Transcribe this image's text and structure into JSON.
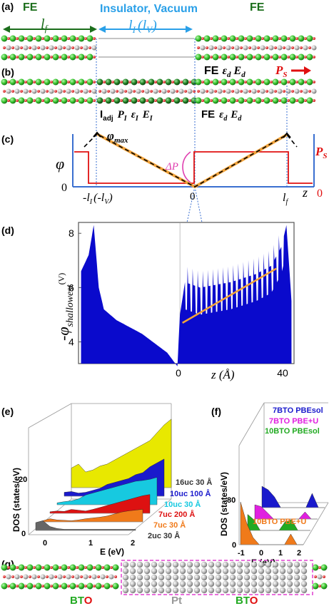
{
  "panels": {
    "a": {
      "letter": "(a)",
      "fe_left": "FE",
      "fe_right": "FE",
      "insulator": "Insulator, Vacuum",
      "lf": "l",
      "lf_sub": "f",
      "li": "l",
      "li_sub": "I",
      "li_paren": "(l",
      "li_paren_sub": "V",
      "li_close": ")"
    },
    "b": {
      "letter": "(b)",
      "right_label": "FE",
      "eps_d": "ε",
      "eps_d_sub": "d",
      "E_d": "E",
      "E_d_sub": "d",
      "Ps": "P",
      "Ps_sub": "S",
      "iadj": "I",
      "iadj_sub": "adj",
      "PI": "P",
      "PI_sub": "I",
      "epsI": "ε",
      "epsI_sub": "I",
      "EI": "E",
      "EI_sub": "I",
      "fe2": "FE",
      "eps2": "ε",
      "eps2_sub": "d",
      "E2": "E",
      "E2_sub": "d"
    },
    "c": {
      "letter": "(c)",
      "phi": "φ",
      "phimax": "φ",
      "phimax_sub": "max",
      "deltaP": "ΔP",
      "Ps": "P",
      "Ps_sub": "S",
      "zero_left": "0",
      "zero_mid": "0",
      "zero_right": "0",
      "z": "z",
      "left_tick": "-l",
      "left_tick_sub": "I",
      "left_tick_paren": "(-l",
      "left_tick_paren_sub": "V",
      "left_tick_close": ")",
      "right_tick": "l",
      "right_tick_sub": "f"
    },
    "d": {
      "letter": "(d)",
      "ylabel_minus": "-φ",
      "ylabel_sub": "shallowest",
      "ylabel_unit": "(V)",
      "xlabel": "z (Å)"
    },
    "e": {
      "letter": "(e)",
      "ylabel": "DOS (states/eV)",
      "xlabel": "E (eV)",
      "yticks": [
        "0",
        "20"
      ],
      "xticks": [
        "0",
        "1",
        "2"
      ],
      "legend": [
        {
          "text": "16uc 30 Å",
          "color": "#333333"
        },
        {
          "text": "10uc 100 Å",
          "color": "#1a1acc"
        },
        {
          "text": "10uc 30 Å",
          "color": "#17c9e0"
        },
        {
          "text": "7uc 200 Å",
          "color": "#dd1111"
        },
        {
          "text": "7uc 30 Å",
          "color": "#f07a1a"
        },
        {
          "text": "2uc 30 Å",
          "color": "#333333"
        }
      ]
    },
    "f": {
      "letter": "(f)",
      "ylabel": "DOS (states/eV)",
      "xlabel": "E (eV)",
      "yticks": [
        "0",
        "80"
      ],
      "xticks": [
        "-1",
        "0",
        "1",
        "2"
      ],
      "legend": [
        {
          "text": "7BTO PBEsol",
          "color": "#1a1acc"
        },
        {
          "text": "7BTO PBE+U",
          "color": "#e020e0"
        },
        {
          "text": "10BTO PBEsol",
          "color": "#22aa22"
        },
        {
          "text": "10BTO PBE+U",
          "color": "#f07a1a"
        }
      ]
    },
    "g": {
      "letter": "(g)",
      "bto_left_b": "BT",
      "bto_left_o": "O",
      "pt": "Pt",
      "bto_right_b": "BT",
      "bto_right_o": "O"
    }
  },
  "chart_data": [
    {
      "panel": "d",
      "type": "area",
      "xlabel": "z (Å)",
      "ylabel": "-φ shallowest (V)",
      "xticks": [
        0,
        40
      ],
      "yticks": [
        4,
        6,
        8
      ],
      "ylim": [
        3.2,
        8.4
      ],
      "envelope": {
        "x": [
          -39,
          -36,
          -34,
          -32,
          -30,
          -25,
          -15,
          -5,
          -1,
          0,
          2,
          8,
          20,
          30,
          36,
          40,
          42,
          44
        ],
        "y": [
          6.6,
          7.2,
          8.3,
          6.0,
          5.2,
          4.8,
          4.3,
          3.6,
          3.1,
          5.0,
          6.2,
          6.0,
          6.2,
          6.5,
          6.8,
          7.5,
          8.3,
          5.5
        ]
      },
      "fit_line": {
        "x": [
          1,
          38
        ],
        "y": [
          4.7,
          6.7
        ],
        "color": "#f2a33a"
      },
      "color": "#0a0acc"
    }
  ]
}
